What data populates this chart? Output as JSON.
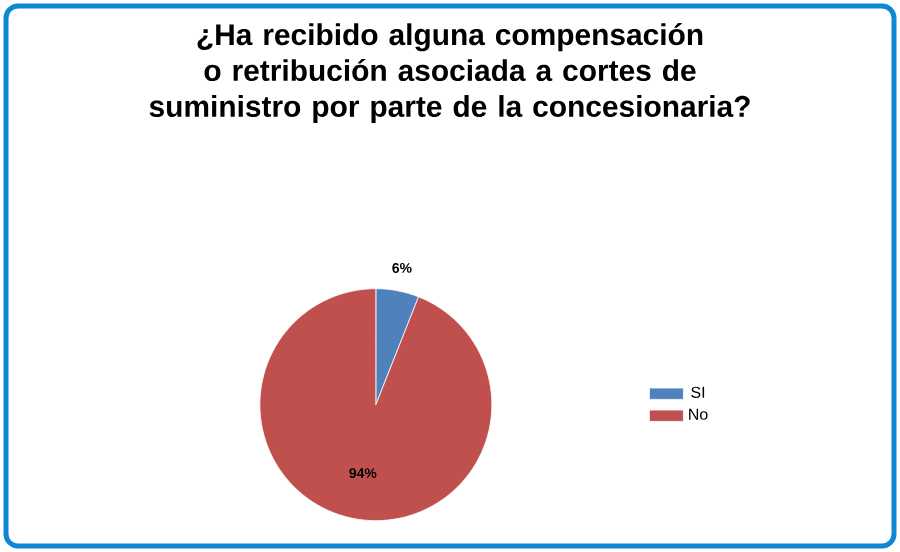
{
  "chart_data": {
    "type": "pie",
    "title": "¿Ha recibido alguna compensación o retribución asociada a cortes de suministro por parte de la concesionaria?",
    "categories": [
      "SI",
      "No"
    ],
    "values": [
      6,
      94
    ],
    "value_labels": [
      "6%",
      "94%"
    ],
    "colors": [
      "#4f81bd",
      "#c0504d"
    ],
    "legend": "right"
  }
}
